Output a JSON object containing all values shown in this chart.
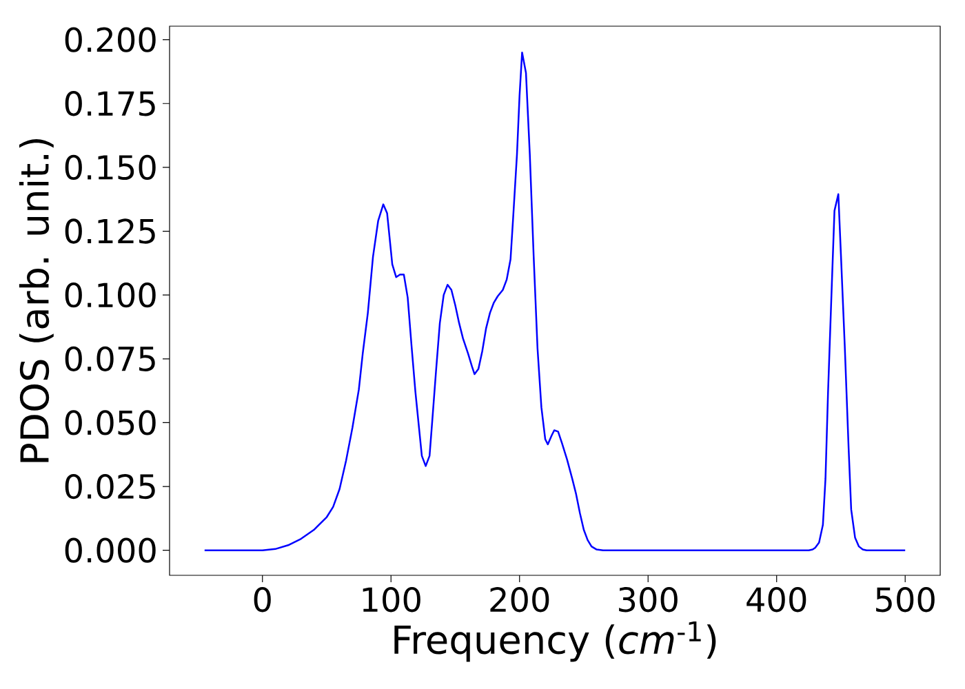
{
  "chart_data": {
    "type": "line",
    "xlabel": "Frequency (*cm*$^{-1}$)",
    "ylabel": "PDOS (arb. unit.)",
    "xlim": [
      -72.25,
      527.25
    ],
    "ylim": [
      -0.0098,
      0.2053
    ],
    "xticks": [
      0,
      100,
      200,
      300,
      400,
      500
    ],
    "yticks": [
      {
        "value": 0,
        "label": "0.000"
      },
      {
        "value": 0.025,
        "label": "0.025"
      },
      {
        "value": 0.05,
        "label": "0.050"
      },
      {
        "value": 0.075,
        "label": "0.075"
      },
      {
        "value": 0.1,
        "label": "0.100"
      },
      {
        "value": 0.125,
        "label": "0.125"
      },
      {
        "value": 0.15,
        "label": "0.150"
      },
      {
        "value": 0.175,
        "label": "0.175"
      },
      {
        "value": 0.2,
        "label": "0.200"
      }
    ],
    "grid": false,
    "marker": "none",
    "line_style": "solid",
    "series": [
      {
        "color": "#0000ff",
        "x": [
          -45,
          0,
          10,
          20,
          30,
          40,
          50,
          55,
          60,
          65,
          70,
          75,
          78,
          82,
          86,
          90,
          94,
          97,
          101,
          104,
          107,
          110,
          113,
          116,
          119,
          122,
          124,
          127,
          130,
          132,
          135,
          138,
          141,
          144,
          147,
          150,
          153,
          156,
          160,
          163,
          165,
          168,
          171,
          174,
          177,
          180,
          183,
          187,
          190,
          193,
          195,
          198,
          200,
          202,
          205,
          208,
          211,
          214,
          217,
          220,
          222,
          225,
          227,
          230,
          233,
          237,
          241,
          244,
          247,
          250,
          253,
          256,
          260,
          265,
          300,
          425,
          428,
          430,
          433,
          436,
          438,
          440,
          443,
          445,
          448,
          450,
          453,
          456,
          458,
          461,
          464,
          467,
          470,
          500
        ],
        "values": [
          0,
          0,
          0.0005,
          0.002,
          0.0045,
          0.008,
          0.013,
          0.017,
          0.024,
          0.035,
          0.048,
          0.063,
          0.077,
          0.093,
          0.115,
          0.129,
          0.1355,
          0.132,
          0.112,
          0.107,
          0.108,
          0.108,
          0.099,
          0.08,
          0.062,
          0.047,
          0.037,
          0.033,
          0.037,
          0.05,
          0.07,
          0.089,
          0.1,
          0.104,
          0.102,
          0.096,
          0.089,
          0.083,
          0.077,
          0.072,
          0.069,
          0.071,
          0.078,
          0.087,
          0.093,
          0.097,
          0.0995,
          0.102,
          0.106,
          0.114,
          0.13,
          0.155,
          0.178,
          0.195,
          0.187,
          0.155,
          0.115,
          0.079,
          0.056,
          0.0435,
          0.0415,
          0.045,
          0.047,
          0.0465,
          0.042,
          0.0355,
          0.028,
          0.022,
          0.0145,
          0.008,
          0.004,
          0.0015,
          0.0003,
          0,
          0,
          0,
          0.0003,
          0.001,
          0.003,
          0.01,
          0.028,
          0.062,
          0.105,
          0.133,
          0.1395,
          0.116,
          0.08,
          0.04,
          0.016,
          0.005,
          0.0015,
          0.0003,
          0,
          0
        ]
      }
    ]
  }
}
